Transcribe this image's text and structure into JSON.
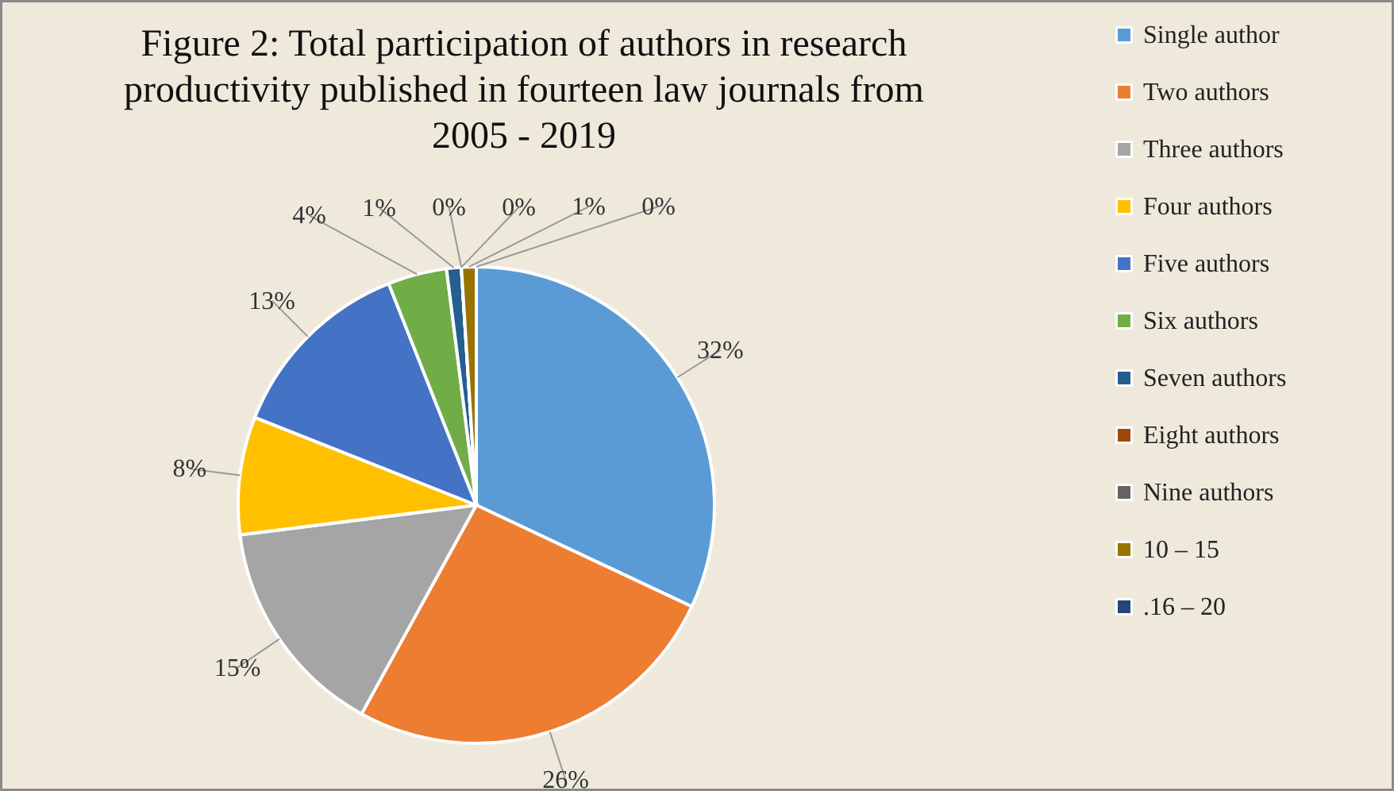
{
  "chart_data": {
    "type": "pie",
    "title": "Figure 2: Total participation of authors in research productivity published in fourteen law journals from 2005 - 2019",
    "categories": [
      "Single author",
      "Two authors",
      "Three authors",
      "Four authors",
      "Five authors",
      "Six authors",
      "Seven authors",
      "Eight authors",
      "Nine authors",
      "10 – 15",
      ".16 – 20"
    ],
    "values": [
      32,
      26,
      15,
      8,
      13,
      4,
      1,
      0,
      0,
      1,
      0
    ],
    "value_labels": [
      "32%",
      "26%",
      "15%",
      "8%",
      "13%",
      "4%",
      "1%",
      "0%",
      "0%",
      "1%",
      "0%"
    ],
    "colors": [
      "#5b9bd5",
      "#ed7d31",
      "#a5a5a5",
      "#ffc000",
      "#4472c4",
      "#70ad47",
      "#255e91",
      "#9e480e",
      "#636363",
      "#997300",
      "#264478"
    ],
    "legend": "right"
  }
}
